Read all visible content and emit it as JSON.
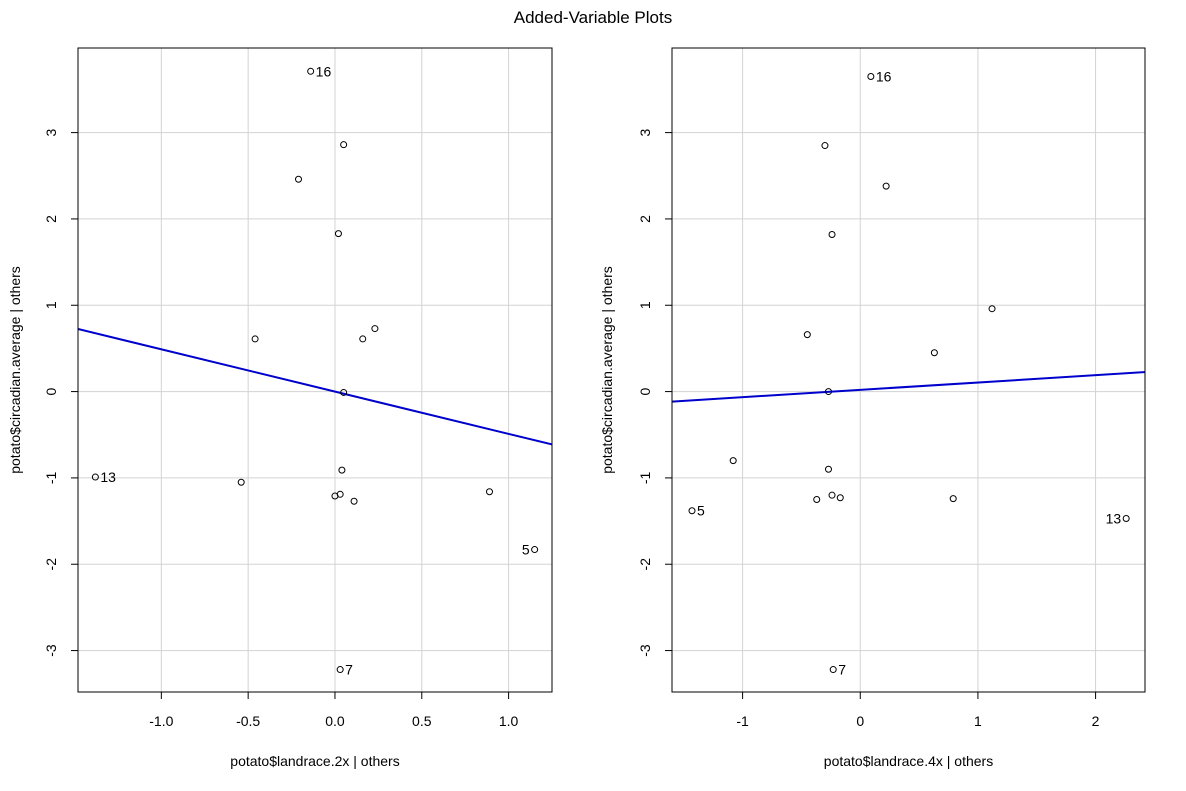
{
  "page": {
    "title": "Added-Variable Plots"
  },
  "colors": {
    "fit_line": "#0000CD",
    "grid": "#D3D3D3",
    "points": "#000000",
    "frame": "#000000"
  },
  "chart_data": [
    {
      "type": "scatter",
      "title": "",
      "xlabel": "potato$landrace.2x | others",
      "ylabel": "potato$circadian.average  | others",
      "xlim": [
        -1.48,
        1.25
      ],
      "ylim": [
        -3.48,
        3.98
      ],
      "xticks": [
        -1.0,
        -0.5,
        0.0,
        0.5,
        1.0
      ],
      "xtick_labels": [
        "-1.0",
        "-0.5",
        "0.0",
        "0.5",
        "1.0"
      ],
      "yticks": [
        -3,
        -2,
        -1,
        0,
        1,
        2,
        3
      ],
      "ytick_labels": [
        "-3",
        "-2",
        "-1",
        "0",
        "1",
        "2",
        "3"
      ],
      "grid": true,
      "points": [
        {
          "x": -0.14,
          "y": 3.71,
          "label": "16"
        },
        {
          "x": 0.05,
          "y": 2.86
        },
        {
          "x": -0.21,
          "y": 2.46
        },
        {
          "x": 0.02,
          "y": 1.83
        },
        {
          "x": -0.46,
          "y": 0.61
        },
        {
          "x": 0.16,
          "y": 0.61
        },
        {
          "x": 0.23,
          "y": 0.73
        },
        {
          "x": 0.05,
          "y": -0.01
        },
        {
          "x": 0.04,
          "y": -0.91
        },
        {
          "x": -1.38,
          "y": -0.99,
          "label": "13"
        },
        {
          "x": -0.54,
          "y": -1.05
        },
        {
          "x": 0.0,
          "y": -1.21
        },
        {
          "x": 0.03,
          "y": -1.19
        },
        {
          "x": 0.11,
          "y": -1.27
        },
        {
          "x": 0.89,
          "y": -1.16
        },
        {
          "x": 1.15,
          "y": -1.83,
          "label": "5"
        },
        {
          "x": 0.03,
          "y": -3.22,
          "label": "7"
        }
      ],
      "fit_line": {
        "intercept": 0.0,
        "slope": -0.49
      }
    },
    {
      "type": "scatter",
      "title": "",
      "xlabel": "potato$landrace.4x | others",
      "ylabel": "potato$circadian.average  | others",
      "xlim": [
        -1.6,
        2.42
      ],
      "ylim": [
        -3.48,
        3.98
      ],
      "xticks": [
        -1,
        0,
        1,
        2
      ],
      "xtick_labels": [
        "-1",
        "0",
        "1",
        "2"
      ],
      "yticks": [
        -3,
        -2,
        -1,
        0,
        1,
        2,
        3
      ],
      "ytick_labels": [
        "-3",
        "-2",
        "-1",
        "0",
        "1",
        "2",
        "3"
      ],
      "grid": true,
      "points": [
        {
          "x": 0.09,
          "y": 3.65,
          "label": "16"
        },
        {
          "x": -0.3,
          "y": 2.85
        },
        {
          "x": 0.22,
          "y": 2.38
        },
        {
          "x": -0.24,
          "y": 1.82
        },
        {
          "x": -0.45,
          "y": 0.66
        },
        {
          "x": 1.12,
          "y": 0.96
        },
        {
          "x": 0.63,
          "y": 0.45
        },
        {
          "x": -0.27,
          "y": 0.0
        },
        {
          "x": -0.27,
          "y": -0.9
        },
        {
          "x": -1.08,
          "y": -0.8
        },
        {
          "x": -1.43,
          "y": -1.38,
          "label": "5"
        },
        {
          "x": -0.37,
          "y": -1.25
        },
        {
          "x": -0.24,
          "y": -1.2
        },
        {
          "x": -0.17,
          "y": -1.23
        },
        {
          "x": 0.79,
          "y": -1.24
        },
        {
          "x": 2.26,
          "y": -1.47,
          "label": "13"
        },
        {
          "x": -0.23,
          "y": -3.22,
          "label": "7"
        }
      ],
      "fit_line": {
        "intercept": 0.02,
        "slope": 0.085
      }
    }
  ]
}
